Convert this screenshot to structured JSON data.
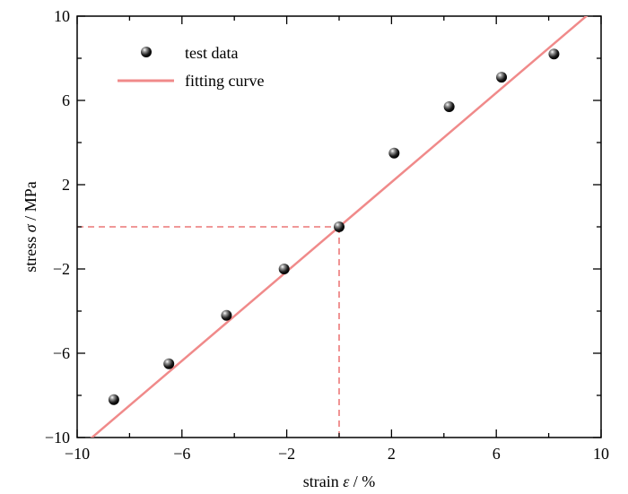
{
  "chart_data": {
    "type": "scatter",
    "xlabel_prefix": "strain ",
    "xlabel_symbol": "ε",
    "xlabel_suffix": " / %",
    "ylabel_prefix": "stress ",
    "ylabel_symbol": "σ",
    "ylabel_suffix": " / MPa",
    "xlim": [
      -10,
      10
    ],
    "ylim": [
      -10,
      10
    ],
    "xticks": [
      -10,
      -6,
      -2,
      2,
      6,
      10
    ],
    "yticks": [
      -10,
      -6,
      -2,
      2,
      6,
      10
    ],
    "xtick_labels": [
      "−10",
      "−6",
      "−2",
      "2",
      "6",
      "10"
    ],
    "ytick_labels": [
      "−10",
      "−6",
      "−2",
      "2",
      "6",
      "10"
    ],
    "grid": false,
    "legend_position": "top-left",
    "series": [
      {
        "name": "test data",
        "kind": "scatter",
        "color": "#111111",
        "x": [
          -8.6,
          -6.5,
          -4.3,
          -2.1,
          0.0,
          2.1,
          4.2,
          6.2,
          8.2
        ],
        "y": [
          -8.2,
          -6.5,
          -4.2,
          -2.0,
          0.0,
          3.5,
          5.7,
          7.1,
          8.2
        ]
      },
      {
        "name": "fitting curve",
        "kind": "line",
        "color": "#f08a8a",
        "slope": 1.06,
        "intercept": 0.0
      }
    ],
    "reference_lines": {
      "color": "#e85a5a",
      "x": 0.0,
      "y": 0.0
    }
  }
}
